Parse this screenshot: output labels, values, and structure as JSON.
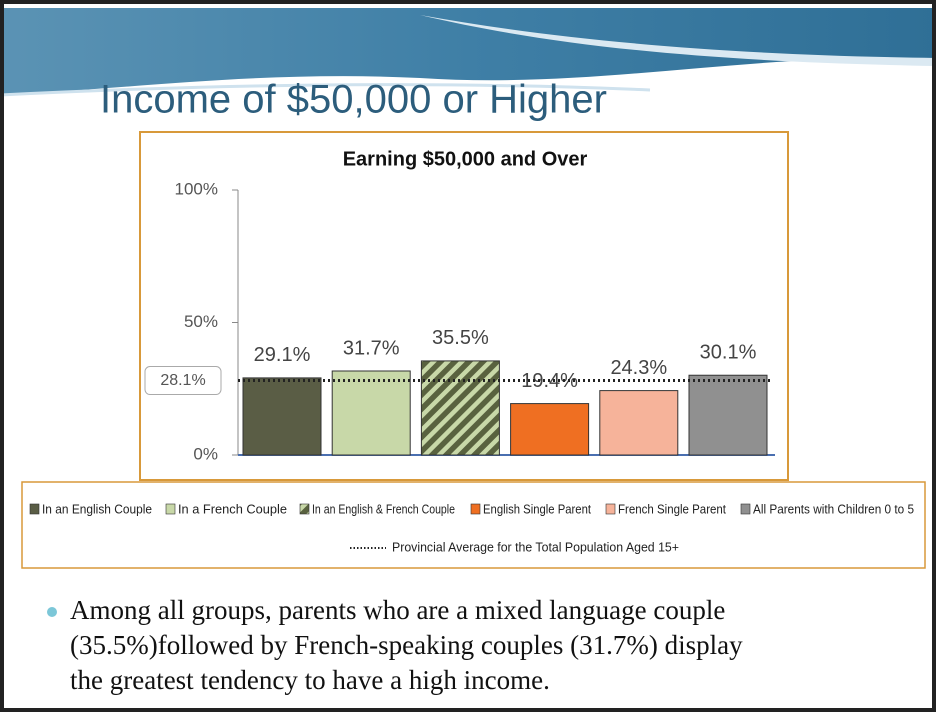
{
  "slide_title": "Income of $50,000 or Higher",
  "chart_data": {
    "type": "bar",
    "title": "Earning $50,000 and Over",
    "categories": [
      "In an English Couple",
      "In a French Couple",
      "In an English & French Couple",
      "English Single Parent",
      "French Single Parent",
      "All Parents with Children 0 to 5"
    ],
    "values": [
      29.1,
      31.7,
      35.5,
      19.4,
      24.3,
      30.1
    ],
    "value_labels": [
      "29.1%",
      "31.7%",
      "35.5%",
      "19.4%",
      "24.3%",
      "30.1%"
    ],
    "colors": [
      "#5a5d45",
      "#c8d8a8",
      "#59623f",
      "#ef6f22",
      "#f6b39a",
      "#909090"
    ],
    "hatched": [
      false,
      false,
      true,
      false,
      false,
      false
    ],
    "ylim": [
      0,
      100
    ],
    "yticks": [
      {
        "value": 0,
        "label": "0%"
      },
      {
        "value": 50,
        "label": "50%"
      },
      {
        "value": 100,
        "label": "100%"
      }
    ],
    "reference_line": {
      "name": "Provincial Average for the Total Population Aged 15+",
      "value": 28.1,
      "label": "28.1%"
    }
  },
  "bullet": {
    "lines": [
      "Among all groups, parents who are a mixed language couple",
      "(35.5%)followed by French-speaking couples (31.7%) display",
      "the greatest tendency to have a high income."
    ]
  }
}
